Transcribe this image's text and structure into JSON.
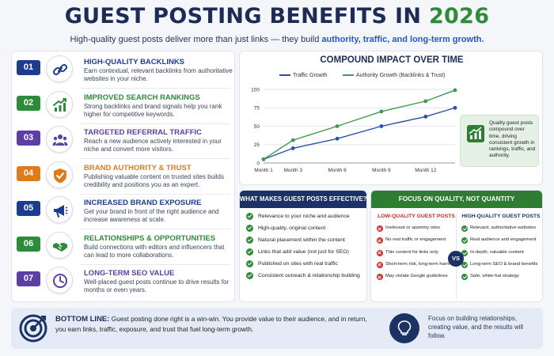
{
  "header": {
    "title_main": "GUEST POSTING BENEFITS IN",
    "title_year": "2026",
    "subtitle_pre": "High-quality guest posts deliver more than just links — they build",
    "subtitle_hl": "authority, traffic, and long-term growth."
  },
  "benefits": [
    {
      "num": "01",
      "title": "HIGH-QUALITY BACKLINKS",
      "desc": "Earn contextual, relevant backlinks from authoritative websites in your niche.",
      "icon": "link-icon",
      "color": "#1c3d8f"
    },
    {
      "num": "02",
      "title": "IMPROVED SEARCH RANKINGS",
      "desc": "Strong backlinks and brand signals help you rank higher for competitive keywords.",
      "icon": "growth-chart-icon",
      "color": "#2e8b3a"
    },
    {
      "num": "03",
      "title": "TARGETED REFERRAL TRAFFIC",
      "desc": "Reach a new audience actively interested in your niche and convert more visitors.",
      "icon": "users-icon",
      "color": "#5b3fa6"
    },
    {
      "num": "04",
      "title": "BRAND AUTHORITY & TRUST",
      "desc": "Publishing valuable content on trusted sites builds credibility and positions you as an expert.",
      "icon": "shield-check-icon",
      "color": "#e07b1a"
    },
    {
      "num": "05",
      "title": "INCREASED BRAND EXPOSURE",
      "desc": "Get your brand in front of the right audience and increase awareness at scale.",
      "icon": "megaphone-icon",
      "color": "#1c3d8f"
    },
    {
      "num": "06",
      "title": "RELATIONSHIPS & OPPORTUNITIES",
      "desc": "Build connections with editors and influencers that can lead to more collaborations.",
      "icon": "handshake-icon",
      "color": "#2e8b3a"
    },
    {
      "num": "07",
      "title": "LONG-TERM SEO VALUE",
      "desc": "Well-placed guest posts continue to drive results for months or even years.",
      "icon": "clock-icon",
      "color": "#5b3fa6"
    }
  ],
  "chart_data": {
    "type": "line",
    "title": "COMPOUND IMPACT OVER TIME",
    "categories": [
      "Month 1",
      "Month 3",
      "Month 6",
      "Month 9",
      "Month 12"
    ],
    "x": [
      1,
      3,
      6,
      9,
      12,
      14
    ],
    "ylim": [
      0,
      100
    ],
    "yticks": [
      0,
      25,
      50,
      75,
      100
    ],
    "grid": true,
    "legend": "top",
    "series": [
      {
        "name": "Traffic Growth",
        "color": "#2a4fa8",
        "values": [
          5,
          20,
          33,
          50,
          63,
          75
        ]
      },
      {
        "name": "Authority Growth (Backlinks & Trust)",
        "color": "#3f9b4a",
        "values": [
          5,
          31,
          50,
          70,
          84,
          99
        ]
      }
    ]
  },
  "callout": {
    "text": "Quality guest posts compound over time, driving consistent growth in rankings, traffic, and authority.",
    "icon": "growth-chart-icon"
  },
  "effective": {
    "title": "WHAT MAKES GUEST POSTS EFFECTIVE?",
    "items": [
      "Relevance to your niche and audience",
      "High-quality, original content",
      "Natural placement within the content",
      "Links that add value (not just for SEO)",
      "Published on sites with real traffic",
      "Consistent outreach & relationship building"
    ]
  },
  "quality": {
    "title": "FOCUS ON QUALITY, NOT QUANTITY",
    "vs": "VS",
    "low_title": "LOW-QUALITY GUEST POSTS",
    "low_items": [
      "Irrelevant or spammy sites",
      "No real traffic or engagement",
      "Thin content for links only",
      "Short-term risk, long-term harm",
      "May violate Google guidelines"
    ],
    "high_title": "HIGH-QUALITY GUEST POSTS",
    "high_items": [
      "Relevant, authoritative websites",
      "Real audience and engagement",
      "In-depth, valuable content",
      "Long-term SEO & brand benefits",
      "Safe, white-hat strategy"
    ]
  },
  "bottom": {
    "label": "BOTTOM LINE:",
    "text": "Guest posting done right is a win-win. You provide value to their audience, and in return, you earn links, traffic, exposure, and trust that fuel long-term growth.",
    "right_text": "Focus on building relationships, creating value, and the results will follow.",
    "left_icon": "target-icon",
    "right_icon": "lightbulb-icon"
  }
}
